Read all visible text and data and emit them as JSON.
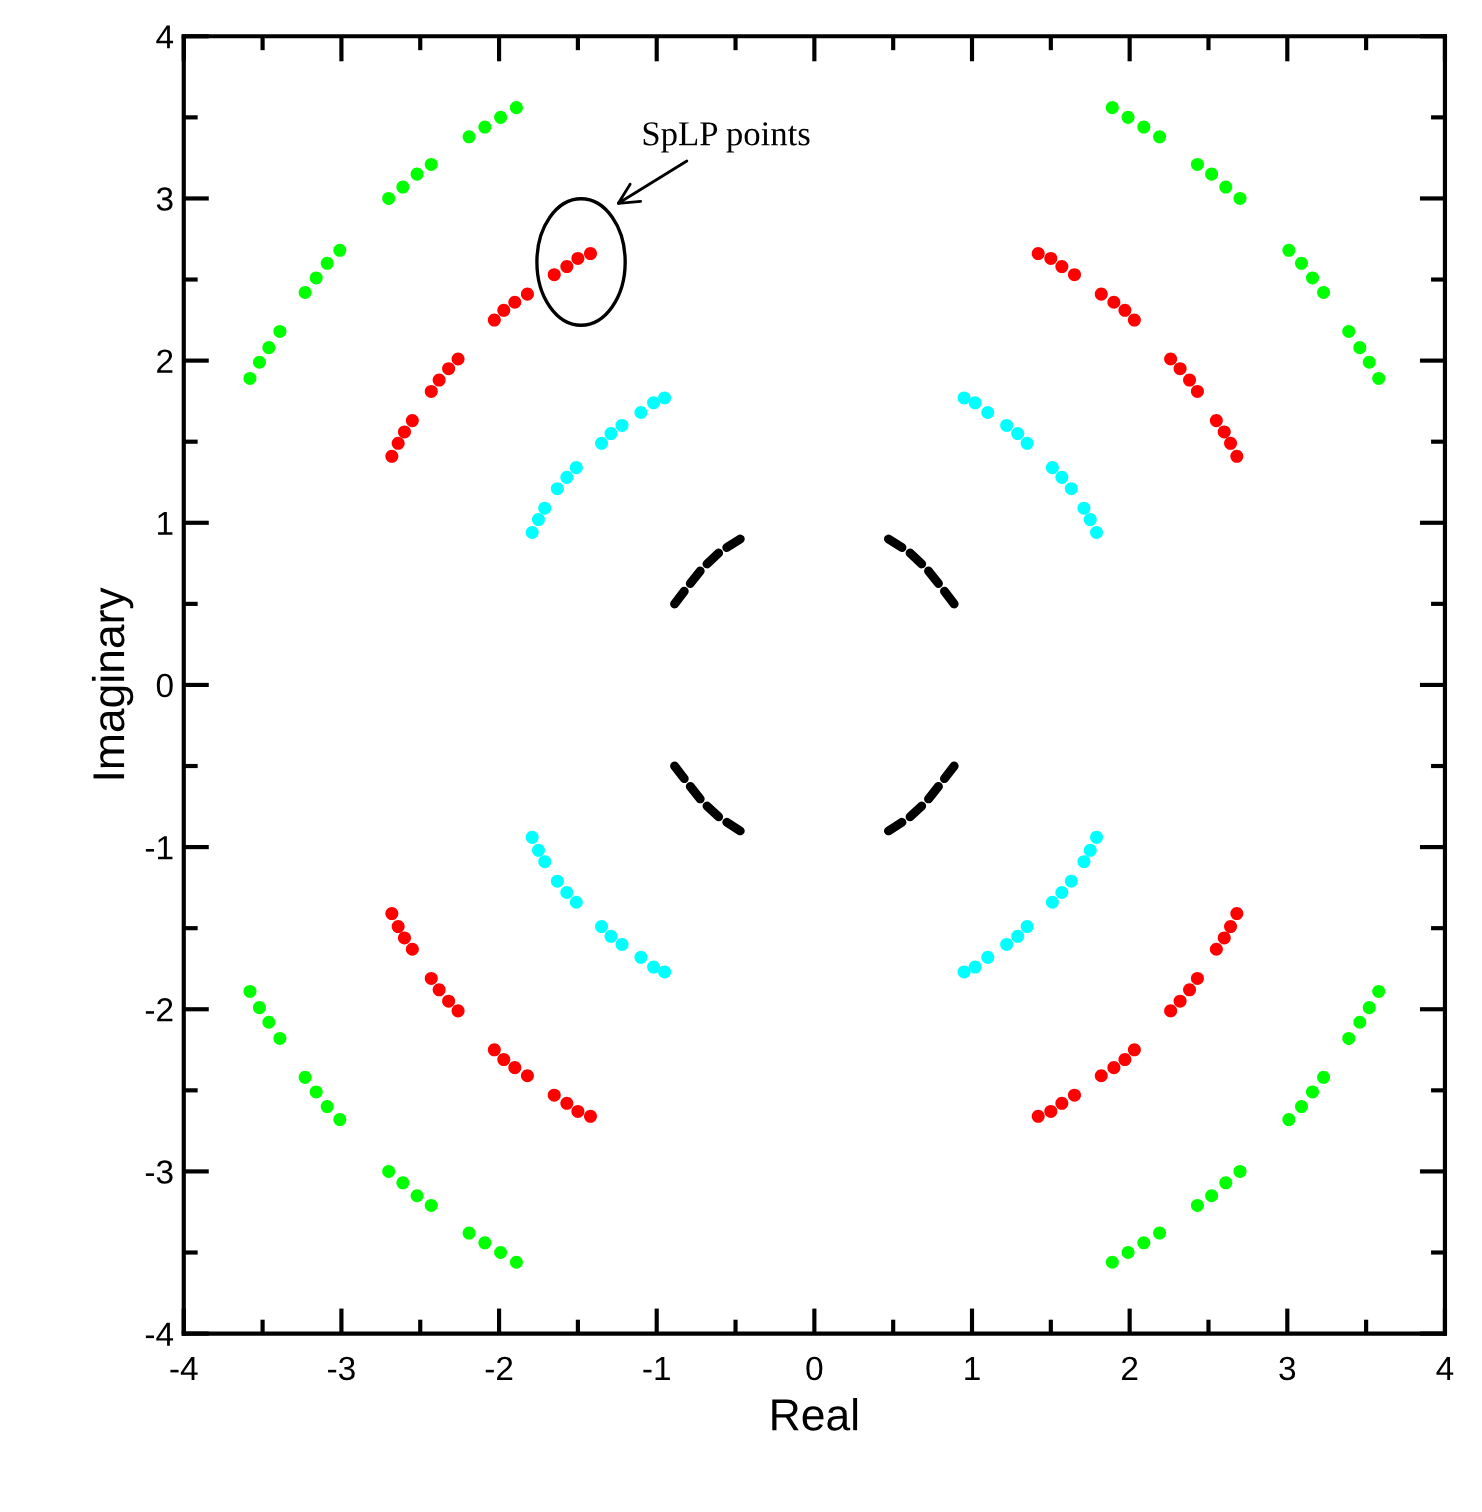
{
  "chart_data": {
    "type": "scatter",
    "xlabel": "Real",
    "ylabel": "Imaginary",
    "xlim": [
      -4,
      4
    ],
    "ylim": [
      -4,
      4
    ],
    "xticks": [
      -4,
      {
        "value": -3.5,
        "label": null
      },
      -3,
      {
        "value": -2.5,
        "label": null
      },
      -2,
      {
        "value": -1.5,
        "label": null
      },
      -1,
      {
        "value": -0.5,
        "label": null
      },
      0,
      {
        "value": 0.5,
        "label": null
      },
      1,
      {
        "value": 1.5,
        "label": null
      },
      2,
      {
        "value": 2.5,
        "label": null
      },
      3,
      {
        "value": 3.5,
        "label": null
      },
      4
    ],
    "yticks": [
      -4,
      {
        "value": -3.5,
        "label": null
      },
      -3,
      {
        "value": -2.5,
        "label": null
      },
      -2,
      {
        "value": -1.5,
        "label": null
      },
      -1,
      {
        "value": -0.5,
        "label": null
      },
      0,
      {
        "value": 0.5,
        "label": null
      },
      1,
      {
        "value": 1.5,
        "label": null
      },
      2,
      {
        "value": 2.5,
        "label": null
      },
      3,
      {
        "value": 3.5,
        "label": null
      },
      4
    ],
    "marker": "circle",
    "grid": false,
    "legend": false,
    "annotations": [
      "SpLP points"
    ],
    "series": [
      {
        "color": "#00ff00",
        "x": [
          1.89,
          1.99,
          2.09,
          2.19,
          2.43,
          2.52,
          2.61,
          2.7,
          3.01,
          3.09,
          3.16,
          3.23,
          3.39,
          3.46,
          3.52,
          3.58,
          -1.89,
          -1.99,
          -2.09,
          -2.19,
          -2.43,
          -2.52,
          -2.61,
          -2.7,
          -3.01,
          -3.09,
          -3.16,
          -3.23,
          -3.39,
          -3.46,
          -3.52,
          -3.58,
          -1.89,
          -1.99,
          -2.09,
          -2.19,
          -2.43,
          -2.52,
          -2.61,
          -2.7,
          -3.01,
          -3.09,
          -3.16,
          -3.23,
          -3.39,
          -3.46,
          -3.52,
          -3.58,
          1.89,
          1.99,
          2.09,
          2.19,
          2.43,
          2.52,
          2.61,
          2.7,
          3.01,
          3.09,
          3.16,
          3.23,
          3.39,
          3.46,
          3.52,
          3.58
        ],
        "values": [
          3.56,
          3.5,
          3.44,
          3.38,
          3.21,
          3.15,
          3.07,
          3.0,
          2.68,
          2.6,
          2.51,
          2.42,
          2.18,
          2.08,
          1.99,
          1.89,
          3.56,
          3.5,
          3.44,
          3.38,
          3.21,
          3.15,
          3.07,
          3.0,
          2.68,
          2.6,
          2.51,
          2.42,
          2.18,
          2.08,
          1.99,
          1.89,
          -3.56,
          -3.5,
          -3.44,
          -3.38,
          -3.21,
          -3.15,
          -3.07,
          -3.0,
          -2.68,
          -2.6,
          -2.51,
          -2.42,
          -2.18,
          -2.08,
          -1.99,
          -1.89,
          -3.56,
          -3.5,
          -3.44,
          -3.38,
          -3.21,
          -3.15,
          -3.07,
          -3.0,
          -2.68,
          -2.6,
          -2.51,
          -2.42,
          -2.18,
          -2.08,
          -1.99,
          -1.89
        ]
      },
      {
        "color": "#ff0000",
        "x": [
          1.42,
          1.5,
          1.57,
          1.65,
          1.82,
          1.9,
          1.97,
          2.03,
          2.26,
          2.32,
          2.38,
          2.43,
          2.55,
          2.6,
          2.64,
          2.68,
          -1.42,
          -1.5,
          -1.57,
          -1.65,
          -1.82,
          -1.9,
          -1.97,
          -2.03,
          -2.26,
          -2.32,
          -2.38,
          -2.43,
          -2.55,
          -2.6,
          -2.64,
          -2.68,
          -1.42,
          -1.5,
          -1.57,
          -1.65,
          -1.82,
          -1.9,
          -1.97,
          -2.03,
          -2.26,
          -2.32,
          -2.38,
          -2.43,
          -2.55,
          -2.6,
          -2.64,
          -2.68,
          1.42,
          1.5,
          1.57,
          1.65,
          1.82,
          1.9,
          1.97,
          2.03,
          2.26,
          2.32,
          2.38,
          2.43,
          2.55,
          2.6,
          2.64,
          2.68
        ],
        "values": [
          2.66,
          2.63,
          2.58,
          2.53,
          2.41,
          2.36,
          2.31,
          2.25,
          2.01,
          1.95,
          1.88,
          1.81,
          1.63,
          1.56,
          1.49,
          1.41,
          2.66,
          2.63,
          2.58,
          2.53,
          2.41,
          2.36,
          2.31,
          2.25,
          2.01,
          1.95,
          1.88,
          1.81,
          1.63,
          1.56,
          1.49,
          1.41,
          -2.66,
          -2.63,
          -2.58,
          -2.53,
          -2.41,
          -2.36,
          -2.31,
          -2.25,
          -2.01,
          -1.95,
          -1.88,
          -1.81,
          -1.63,
          -1.56,
          -1.49,
          -1.41,
          -2.66,
          -2.63,
          -2.58,
          -2.53,
          -2.41,
          -2.36,
          -2.31,
          -2.25,
          -2.01,
          -1.95,
          -1.88,
          -1.81,
          -1.63,
          -1.56,
          -1.49,
          -1.41
        ]
      },
      {
        "color": "#00ffff",
        "x": [
          0.95,
          1.02,
          1.1,
          1.22,
          1.29,
          1.35,
          1.51,
          1.57,
          1.63,
          1.71,
          1.75,
          1.79,
          -0.95,
          -1.02,
          -1.1,
          -1.22,
          -1.29,
          -1.35,
          -1.51,
          -1.57,
          -1.63,
          -1.71,
          -1.75,
          -1.79,
          -0.95,
          -1.02,
          -1.1,
          -1.22,
          -1.29,
          -1.35,
          -1.51,
          -1.57,
          -1.63,
          -1.71,
          -1.75,
          -1.79,
          0.95,
          1.02,
          1.1,
          1.22,
          1.29,
          1.35,
          1.51,
          1.57,
          1.63,
          1.71,
          1.75,
          1.79
        ],
        "values": [
          1.77,
          1.74,
          1.68,
          1.6,
          1.55,
          1.49,
          1.34,
          1.28,
          1.21,
          1.09,
          1.02,
          0.94,
          1.77,
          1.74,
          1.68,
          1.6,
          1.55,
          1.49,
          1.34,
          1.28,
          1.21,
          1.09,
          1.02,
          0.94,
          -1.77,
          -1.74,
          -1.68,
          -1.6,
          -1.55,
          -1.49,
          -1.34,
          -1.28,
          -1.21,
          -1.09,
          -1.02,
          -0.94,
          -1.77,
          -1.74,
          -1.68,
          -1.6,
          -1.55,
          -1.49,
          -1.34,
          -1.28,
          -1.21,
          -1.09,
          -1.02,
          -0.94
        ]
      },
      {
        "color": "#000000",
        "type": "line",
        "line_style": "dashed",
        "marker": "none",
        "x": [
          0.47,
          0.6,
          0.71,
          0.8,
          0.91,
          null,
          -0.47,
          -0.6,
          -0.71,
          -0.8,
          -0.91,
          null,
          -0.47,
          -0.6,
          -0.71,
          -0.8,
          -0.91,
          null,
          0.47,
          0.6,
          0.71,
          0.8,
          0.91
        ],
        "values": [
          0.9,
          0.82,
          0.72,
          0.61,
          0.47,
          null,
          0.9,
          0.82,
          0.72,
          0.61,
          0.47,
          null,
          -0.9,
          -0.82,
          -0.72,
          -0.61,
          -0.47,
          null,
          -0.9,
          -0.82,
          -0.72,
          -0.61,
          -0.47
        ]
      }
    ]
  }
}
